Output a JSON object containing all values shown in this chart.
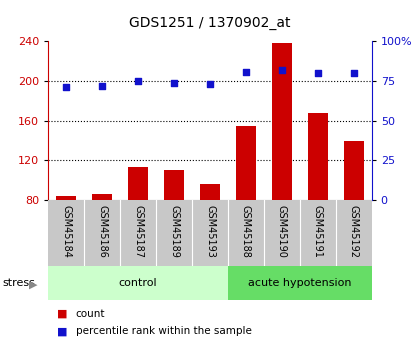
{
  "title": "GDS1251 / 1370902_at",
  "samples": [
    "GSM45184",
    "GSM45186",
    "GSM45187",
    "GSM45189",
    "GSM45193",
    "GSM45188",
    "GSM45190",
    "GSM45191",
    "GSM45192"
  ],
  "counts": [
    84,
    86,
    113,
    110,
    96,
    155,
    238,
    168,
    140
  ],
  "percentile_ranks": [
    71,
    72,
    75,
    74,
    73,
    81,
    82,
    80,
    80
  ],
  "ylim_left": [
    80,
    240
  ],
  "ylim_right": [
    0,
    100
  ],
  "yticks_left": [
    80,
    120,
    160,
    200,
    240
  ],
  "yticks_right": [
    0,
    25,
    50,
    75,
    100
  ],
  "ytick_right_labels": [
    "0",
    "25",
    "50",
    "75",
    "100%"
  ],
  "bar_color": "#cc0000",
  "dot_color": "#1111cc",
  "bar_width": 0.55,
  "control_label": "control",
  "hypo_label": "acute hypotension",
  "group_label": "stress",
  "legend_count": "count",
  "legend_percentile": "percentile rank within the sample",
  "bg_color_plot": "#ffffff",
  "bg_color_xlabels": "#c8c8c8",
  "bg_color_control": "#ccffcc",
  "bg_color_hypo": "#66dd66",
  "grid_color": "#000000",
  "title_fontsize": 10,
  "tick_fontsize": 8,
  "label_fontsize": 7,
  "n_control": 5,
  "n_hypo": 4
}
